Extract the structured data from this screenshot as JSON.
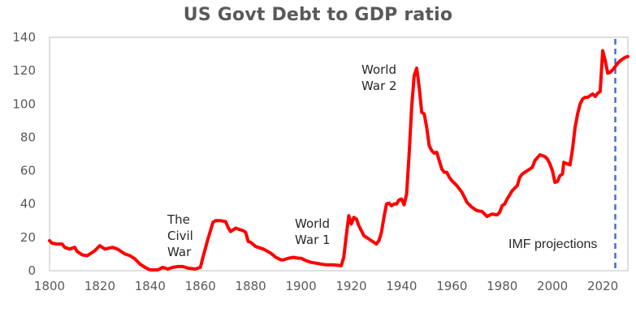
{
  "chart_data": {
    "type": "line",
    "title": "US Govt Debt to GDP ratio",
    "xlabel": "",
    "ylabel": "",
    "xlim": [
      1800,
      2030
    ],
    "ylim": [
      0,
      140
    ],
    "grid": false,
    "legend": null,
    "x_ticks": [
      1800,
      1820,
      1840,
      1860,
      1880,
      1900,
      1920,
      1940,
      1960,
      1980,
      2000,
      2020
    ],
    "y_ticks": [
      0,
      20,
      40,
      60,
      80,
      100,
      120,
      140
    ],
    "series": [
      {
        "name": "US Govt Debt to GDP ratio (%)",
        "color": "#ff0000",
        "points": [
          [
            1800,
            18
          ],
          [
            1801,
            16.5
          ],
          [
            1803,
            16
          ],
          [
            1805,
            16
          ],
          [
            1806,
            14
          ],
          [
            1808,
            13
          ],
          [
            1810,
            14
          ],
          [
            1811,
            11.5
          ],
          [
            1813,
            9.5
          ],
          [
            1815,
            9
          ],
          [
            1817,
            11
          ],
          [
            1818,
            12
          ],
          [
            1820,
            15
          ],
          [
            1822,
            13
          ],
          [
            1825,
            14
          ],
          [
            1827,
            13
          ],
          [
            1828,
            12
          ],
          [
            1830,
            10
          ],
          [
            1832,
            9
          ],
          [
            1834,
            7
          ],
          [
            1836,
            4
          ],
          [
            1838,
            2
          ],
          [
            1840,
            0.5
          ],
          [
            1843,
            0.5
          ],
          [
            1845,
            2
          ],
          [
            1847,
            1
          ],
          [
            1849,
            2
          ],
          [
            1851,
            2.5
          ],
          [
            1853,
            2.5
          ],
          [
            1855,
            1.5
          ],
          [
            1858,
            1
          ],
          [
            1860,
            2
          ],
          [
            1861,
            8
          ],
          [
            1863,
            19
          ],
          [
            1865,
            29
          ],
          [
            1866,
            30
          ],
          [
            1868,
            30
          ],
          [
            1870,
            29.5
          ],
          [
            1871,
            26
          ],
          [
            1872,
            23.5
          ],
          [
            1874,
            25.5
          ],
          [
            1876,
            24.5
          ],
          [
            1877,
            24
          ],
          [
            1878,
            23
          ],
          [
            1879,
            17.5
          ],
          [
            1880,
            17
          ],
          [
            1882,
            14.5
          ],
          [
            1885,
            13
          ],
          [
            1888,
            10.5
          ],
          [
            1890,
            8
          ],
          [
            1892,
            6.5
          ],
          [
            1893,
            6.5
          ],
          [
            1895,
            7.5
          ],
          [
            1897,
            8
          ],
          [
            1899,
            7.5
          ],
          [
            1900,
            7.5
          ],
          [
            1902,
            6
          ],
          [
            1904,
            5
          ],
          [
            1906,
            4.5
          ],
          [
            1908,
            4
          ],
          [
            1910,
            3.5
          ],
          [
            1913,
            3.5
          ],
          [
            1916,
            3
          ],
          [
            1917,
            8
          ],
          [
            1918,
            21
          ],
          [
            1919,
            33
          ],
          [
            1920,
            28
          ],
          [
            1921,
            32
          ],
          [
            1922,
            31
          ],
          [
            1923,
            27
          ],
          [
            1924,
            24
          ],
          [
            1925,
            21
          ],
          [
            1927,
            19
          ],
          [
            1929,
            17
          ],
          [
            1930,
            16
          ],
          [
            1931,
            18
          ],
          [
            1932,
            23
          ],
          [
            1933,
            32
          ],
          [
            1934,
            40
          ],
          [
            1935,
            40.5
          ],
          [
            1936,
            39
          ],
          [
            1937,
            40
          ],
          [
            1938,
            40
          ],
          [
            1939,
            42.5
          ],
          [
            1940,
            43
          ],
          [
            1941,
            39.5
          ],
          [
            1942,
            46
          ],
          [
            1943,
            70
          ],
          [
            1944,
            98
          ],
          [
            1945,
            117
          ],
          [
            1946,
            121.5
          ],
          [
            1947,
            110
          ],
          [
            1948,
            95
          ],
          [
            1949,
            94
          ],
          [
            1950,
            86
          ],
          [
            1951,
            75
          ],
          [
            1952,
            72
          ],
          [
            1953,
            70.5
          ],
          [
            1954,
            71
          ],
          [
            1955,
            66
          ],
          [
            1956,
            61
          ],
          [
            1957,
            59
          ],
          [
            1958,
            59
          ],
          [
            1959,
            56
          ],
          [
            1960,
            54
          ],
          [
            1962,
            51
          ],
          [
            1964,
            47
          ],
          [
            1966,
            41
          ],
          [
            1968,
            38
          ],
          [
            1970,
            36
          ],
          [
            1972,
            35.5
          ],
          [
            1974,
            32.5
          ],
          [
            1976,
            34
          ],
          [
            1978,
            33.5
          ],
          [
            1979,
            35
          ],
          [
            1980,
            39
          ],
          [
            1981,
            40
          ],
          [
            1982,
            43
          ],
          [
            1984,
            48
          ],
          [
            1986,
            51
          ],
          [
            1987,
            56
          ],
          [
            1988,
            58
          ],
          [
            1990,
            60
          ],
          [
            1992,
            62
          ],
          [
            1993,
            66
          ],
          [
            1995,
            69.5
          ],
          [
            1997,
            68.5
          ],
          [
            1998,
            67
          ],
          [
            1999,
            64
          ],
          [
            2000,
            60
          ],
          [
            2001,
            53
          ],
          [
            2002,
            53.5
          ],
          [
            2003,
            57
          ],
          [
            2004,
            58
          ],
          [
            2004.5,
            65
          ],
          [
            2006,
            64
          ],
          [
            2007,
            63.5
          ],
          [
            2008,
            73
          ],
          [
            2009,
            86
          ],
          [
            2010,
            94
          ],
          [
            2011,
            100
          ],
          [
            2012,
            103
          ],
          [
            2013,
            104
          ],
          [
            2014,
            104
          ],
          [
            2015,
            105
          ],
          [
            2016,
            106
          ],
          [
            2017,
            104.5
          ],
          [
            2018,
            106.5
          ],
          [
            2019,
            107.5
          ],
          [
            2020,
            132
          ],
          [
            2021,
            126
          ],
          [
            2022,
            118.5
          ],
          [
            2023,
            119
          ],
          [
            2024,
            120.5
          ],
          [
            2025,
            122.5
          ],
          [
            2026,
            124.5
          ],
          [
            2027,
            126
          ],
          [
            2028,
            127
          ],
          [
            2029,
            128
          ],
          [
            2030,
            128.5
          ]
        ]
      }
    ],
    "reference_lines": [
      {
        "type": "vertical",
        "x": 2025,
        "style": "dashed",
        "color": "#4472c4",
        "label": "IMF projections"
      }
    ],
    "annotations": [
      {
        "text_lines": [
          "The",
          "Civil",
          "War"
        ],
        "x": 1851,
        "y": 29
      },
      {
        "text_lines": [
          "World",
          "War 1"
        ],
        "x": 1895,
        "y": 25
      },
      {
        "text_lines": [
          "World",
          "War 2"
        ],
        "x": 1928,
        "y": 121
      },
      {
        "text_lines": [
          "IMF projections"
        ],
        "x": 1990,
        "y": 15
      }
    ]
  },
  "labels": {
    "title": "US Govt Debt to GDP ratio",
    "civil_war_1": "The",
    "civil_war_2": "Civil",
    "civil_war_3": "War",
    "ww1_1": "World",
    "ww1_2": "War 1",
    "ww2_1": "World",
    "ww2_2": "War 2",
    "imf": "IMF projections"
  },
  "colors": {
    "series": "#ff0000",
    "projection_line": "#4472c4",
    "axis": "#bfbfbf",
    "tick_text": "#595959",
    "annotation_text": "#262626"
  }
}
